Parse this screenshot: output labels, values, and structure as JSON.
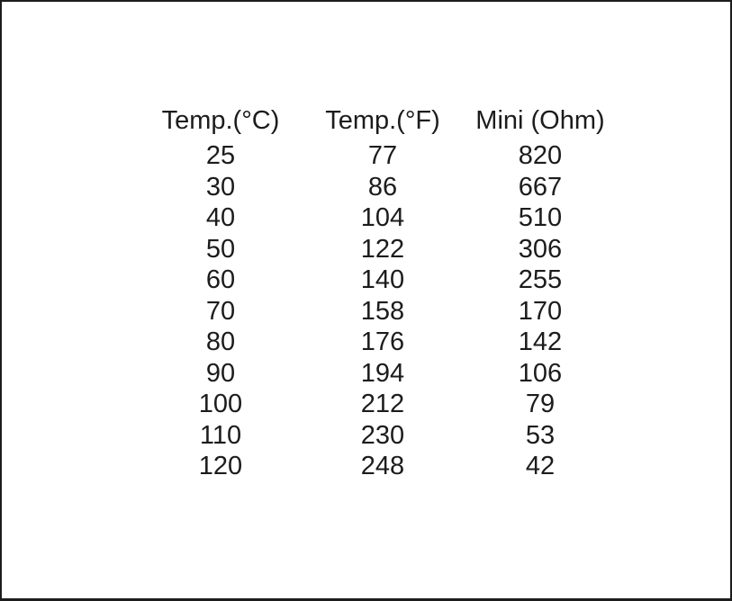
{
  "table": {
    "headers": [
      "Temp.(°C)",
      "Temp.(°F)",
      "Mini (Ohm)"
    ],
    "rows": [
      [
        "25",
        "77",
        "820"
      ],
      [
        "30",
        "86",
        "667"
      ],
      [
        "40",
        "104",
        "510"
      ],
      [
        "50",
        "122",
        "306"
      ],
      [
        "60",
        "140",
        "255"
      ],
      [
        "70",
        "158",
        "170"
      ],
      [
        "80",
        "176",
        "142"
      ],
      [
        "90",
        "194",
        "106"
      ],
      [
        "100",
        "212",
        "79"
      ],
      [
        "110",
        "230",
        "53"
      ],
      [
        "120",
        "248",
        "42"
      ]
    ]
  },
  "chart_data": {
    "type": "table",
    "columns": [
      "Temp.(°C)",
      "Temp.(°F)",
      "Mini (Ohm)"
    ],
    "temperature_c": [
      25,
      30,
      40,
      50,
      60,
      70,
      80,
      90,
      100,
      110,
      120
    ],
    "temperature_f": [
      77,
      86,
      104,
      122,
      140,
      158,
      176,
      194,
      212,
      230,
      248
    ],
    "resistance_ohm": [
      820,
      667,
      510,
      306,
      255,
      170,
      142,
      106,
      79,
      53,
      42
    ]
  },
  "colors": {
    "text": "#1c1c1c",
    "background": "#ffffff",
    "border": "#1d1d1d"
  }
}
